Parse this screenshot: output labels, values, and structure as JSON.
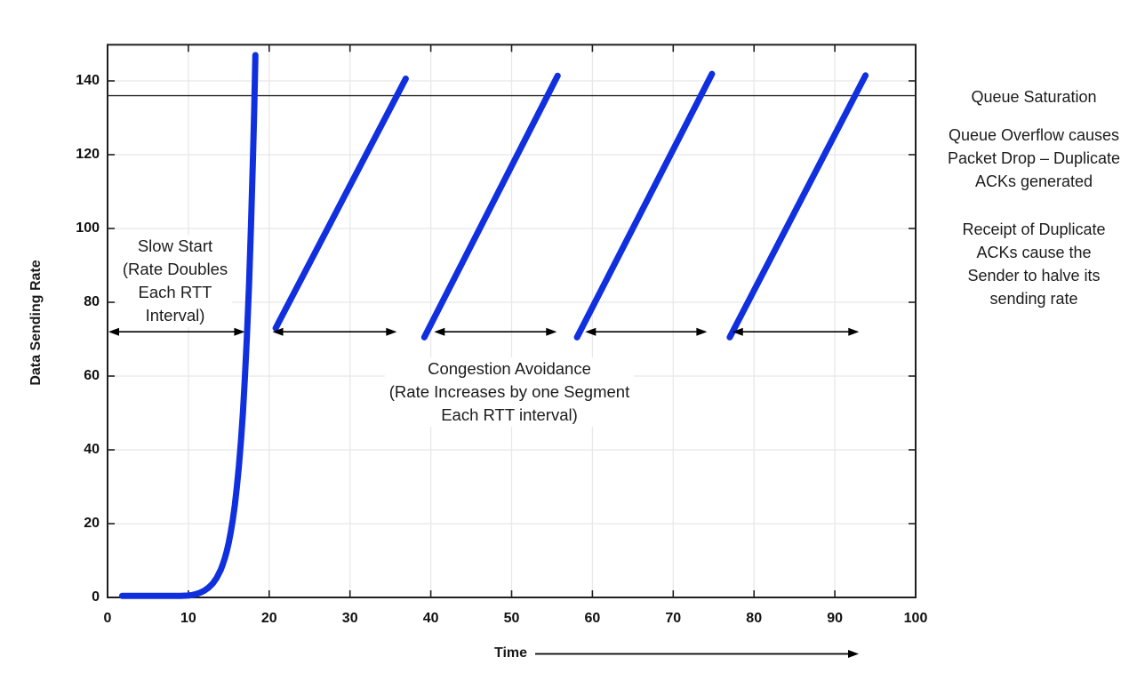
{
  "palette": {
    "line_blue": "#1030e0",
    "grid_color": "#e8e8e8",
    "axis_color": "#1f1f1f",
    "background": "#ffffff"
  },
  "chart_data": {
    "type": "line",
    "xlabel": "Time",
    "ylabel": "Data Sending Rate",
    "xlim": [
      0,
      100
    ],
    "ylim": [
      0,
      149.8
    ],
    "x_ticks": [
      0,
      10,
      20,
      30,
      40,
      50,
      60,
      70,
      80,
      90,
      100
    ],
    "y_ticks": [
      0,
      20,
      40,
      60,
      80,
      100,
      120,
      140
    ],
    "grid": true,
    "queue_saturation_level": 136,
    "series": [
      {
        "name": "slow-start-curve",
        "x": [
          1.8,
          3,
          4,
          5,
          6,
          7,
          8,
          9,
          10,
          10.5,
          11,
          11.5,
          12,
          12.5,
          13,
          13.5,
          14,
          14.25,
          14.5,
          14.75,
          15,
          15.25,
          15.5,
          15.75,
          16,
          16.25,
          16.5,
          16.75,
          17,
          17.25,
          17.5,
          17.75,
          18,
          18.15,
          18.3
        ],
        "y": [
          0.4,
          0.4,
          0.4,
          0.4,
          0.4,
          0.4,
          0.4,
          0.4,
          0.5,
          0.66,
          0.93,
          1.32,
          1.87,
          2.64,
          3.73,
          5.28,
          7.46,
          8.88,
          10.56,
          12.55,
          14.93,
          17.75,
          21.11,
          25.11,
          29.86,
          35.51,
          42.23,
          50.21,
          59.71,
          71.01,
          84.45,
          100.42,
          119.42,
          132.5,
          147
        ]
      },
      {
        "name": "congestion-avoidance-ramp-1",
        "x": [
          20.8,
          36.9
        ],
        "y": [
          73.0,
          140.6
        ]
      },
      {
        "name": "congestion-avoidance-ramp-2",
        "x": [
          39.2,
          55.7
        ],
        "y": [
          70.5,
          141.4
        ]
      },
      {
        "name": "congestion-avoidance-ramp-3",
        "x": [
          58.1,
          74.8
        ],
        "y": [
          70.5,
          141.9
        ]
      },
      {
        "name": "congestion-avoidance-ramp-4",
        "x": [
          77.0,
          93.8
        ],
        "y": [
          70.5,
          141.5
        ]
      }
    ],
    "range_arrows": [
      {
        "from": 0,
        "to": 17.1,
        "at": 72
      },
      {
        "from": 20.3,
        "to": 35.9,
        "at": 72
      },
      {
        "from": 40.3,
        "to": 55.7,
        "at": 72
      },
      {
        "from": 59.0,
        "to": 74.3,
        "at": 72
      },
      {
        "from": 77.2,
        "to": 93.1,
        "at": 72
      }
    ],
    "annotations": {
      "slow_start": {
        "lines": [
          "Slow Start",
          "(Rate Doubles",
          "Each RTT",
          "Interval)"
        ],
        "x": 8.4,
        "y": 95
      },
      "congestion_avoidance": {
        "lines": [
          "Congestion Avoidance",
          "(Rate Increases by one Segment",
          "Each RTT interval)"
        ],
        "x": 49.7,
        "y": 61
      }
    }
  },
  "side_notes": {
    "note1": "Queue Saturation",
    "note2_lines": [
      "Queue Overflow causes",
      "Packet Drop – Duplicate",
      "ACKs generated"
    ],
    "note3_lines": [
      "Receipt of Duplicate",
      "ACKs cause the",
      "Sender to halve its",
      "sending rate"
    ]
  }
}
